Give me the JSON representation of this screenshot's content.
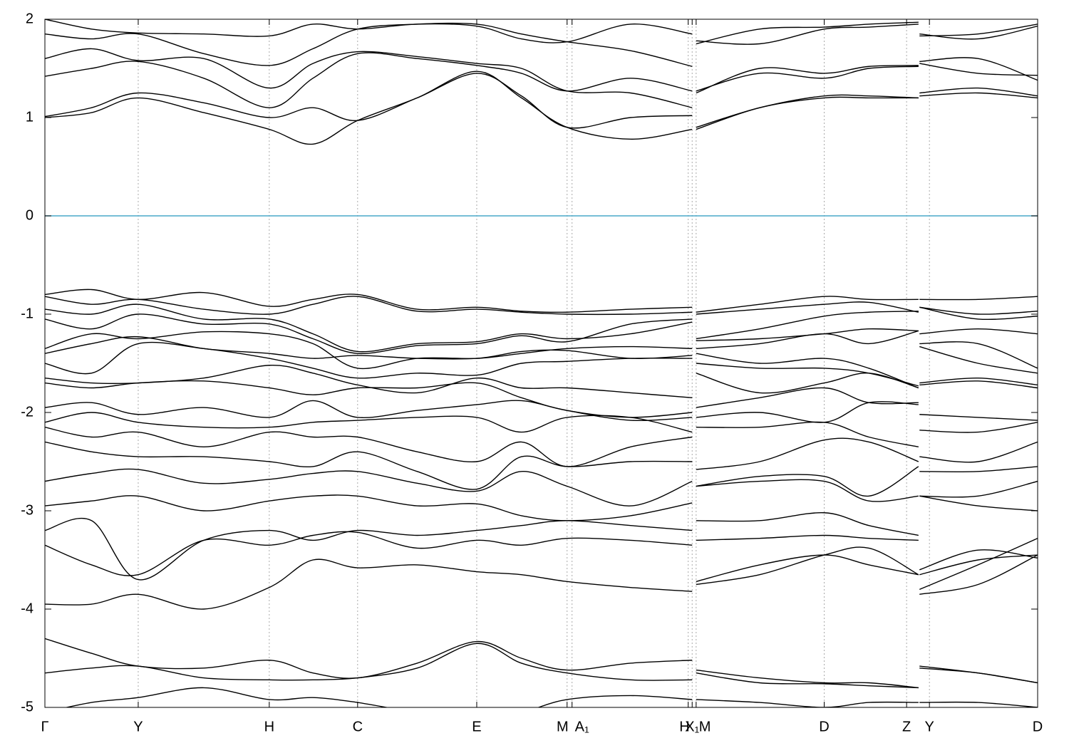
{
  "chart_data": {
    "type": "line",
    "x": [
      0,
      0.047,
      0.094,
      0.16,
      0.226,
      0.27,
      0.315,
      0.375,
      0.435,
      0.48,
      0.526,
      0.59,
      0.652,
      0.654,
      0.656,
      0.72,
      0.785,
      0.83,
      0.88,
      0.8805,
      0.881,
      0.94,
      1.0
    ],
    "xlim": [
      0,
      1.0
    ],
    "xticks": [
      {
        "value": 0,
        "label": "Γ"
      },
      {
        "value": 0.094,
        "label": "Y"
      },
      {
        "value": 0.226,
        "label": "H"
      },
      {
        "value": 0.315,
        "label": "C"
      },
      {
        "value": 0.435,
        "label": "E"
      },
      {
        "value": 0.526,
        "label": "M"
      },
      {
        "value": 0.531,
        "label": "A₁"
      },
      {
        "value": 0.648,
        "label": "H"
      },
      {
        "value": 0.652,
        "label": "X₁"
      },
      {
        "value": 0.656,
        "label": "M"
      },
      {
        "value": 0.785,
        "label": "D"
      },
      {
        "value": 0.868,
        "label": "Z"
      },
      {
        "value": 0.891,
        "label": "Y"
      },
      {
        "value": 1.0,
        "label": "D"
      }
    ],
    "ylim": [
      -5,
      2
    ],
    "yticks": [
      -5,
      -4,
      -3,
      -2,
      -1,
      0,
      1,
      2
    ],
    "grid": "x",
    "hlines": [
      {
        "value": 0,
        "color": "#4aa8c8"
      }
    ],
    "line_color": "#000000",
    "series": [
      {
        "values": [
          1.0,
          1.05,
          1.2,
          1.05,
          0.88,
          0.73,
          0.97,
          1.2,
          1.47,
          1.2,
          0.9,
          0.78,
          0.88,
          null,
          0.88,
          1.1,
          1.2,
          1.2,
          1.2,
          null,
          1.22,
          1.25,
          1.2
        ]
      },
      {
        "values": [
          1.01,
          1.1,
          1.25,
          1.15,
          1.0,
          1.1,
          0.97,
          1.2,
          1.45,
          1.22,
          0.9,
          1.0,
          1.02,
          null,
          0.9,
          1.1,
          1.22,
          1.22,
          1.2,
          null,
          1.25,
          1.3,
          1.22
        ]
      },
      {
        "values": [
          1.42,
          1.5,
          1.57,
          1.4,
          1.1,
          1.4,
          1.65,
          1.6,
          1.53,
          1.45,
          1.27,
          1.4,
          1.27,
          null,
          1.27,
          1.45,
          1.4,
          1.5,
          1.52,
          null,
          1.57,
          1.6,
          1.38
        ]
      },
      {
        "values": [
          1.6,
          1.7,
          1.58,
          1.6,
          1.3,
          1.55,
          1.67,
          1.62,
          1.55,
          1.5,
          1.27,
          1.25,
          1.1,
          null,
          1.25,
          1.5,
          1.45,
          1.52,
          1.53,
          null,
          1.55,
          1.45,
          1.43
        ]
      },
      {
        "values": [
          1.85,
          1.8,
          1.85,
          1.65,
          1.53,
          1.7,
          1.9,
          1.95,
          1.95,
          1.85,
          1.77,
          1.68,
          1.52,
          null,
          1.78,
          1.75,
          1.9,
          1.92,
          1.95,
          null,
          1.85,
          1.8,
          1.93
        ]
      },
      {
        "values": [
          2.0,
          1.9,
          1.86,
          1.85,
          1.83,
          1.95,
          1.9,
          1.95,
          1.93,
          1.8,
          1.77,
          1.95,
          1.85,
          null,
          1.75,
          1.9,
          1.92,
          1.95,
          1.97,
          null,
          1.83,
          1.85,
          1.95
        ]
      },
      {
        "values": [
          -0.8,
          -0.75,
          -0.85,
          -0.78,
          -0.92,
          -0.85,
          -0.8,
          -0.95,
          -0.93,
          -0.97,
          -0.98,
          -0.95,
          -0.93,
          null,
          -0.98,
          -0.9,
          -0.82,
          -0.85,
          -0.85,
          null,
          -0.85,
          -0.85,
          -0.82
        ]
      },
      {
        "values": [
          -0.82,
          -0.9,
          -0.85,
          -0.95,
          -1.0,
          -0.9,
          -0.82,
          -0.97,
          -0.95,
          -0.98,
          -1.0,
          -1.0,
          -0.98,
          null,
          -1.0,
          -0.95,
          -0.9,
          -0.88,
          -0.98,
          null,
          -0.93,
          -1.0,
          -0.97
        ]
      },
      {
        "values": [
          -0.95,
          -1.0,
          -0.9,
          -1.05,
          -1.05,
          -1.2,
          -1.38,
          -1.3,
          -1.28,
          -1.2,
          -1.25,
          -1.2,
          -1.08,
          null,
          -1.25,
          -1.15,
          -1.02,
          -0.98,
          -0.97,
          null,
          -0.93,
          -1.05,
          -1.02
        ]
      },
      {
        "values": [
          -1.05,
          -1.15,
          -1.0,
          -1.1,
          -1.1,
          -1.25,
          -1.4,
          -1.32,
          -1.3,
          -1.22,
          -1.28,
          -1.1,
          -1.05,
          null,
          -1.27,
          -1.25,
          -1.2,
          -1.15,
          -1.17,
          null,
          -1.2,
          -1.15,
          -1.2
        ]
      },
      {
        "values": [
          -1.35,
          -1.2,
          -1.25,
          -1.18,
          -1.2,
          -1.3,
          -1.55,
          -1.45,
          -1.45,
          -1.4,
          -1.35,
          -1.33,
          -1.35,
          null,
          -1.35,
          -1.3,
          -1.2,
          -1.3,
          -1.17,
          null,
          -1.3,
          -1.3,
          -1.55
        ]
      },
      {
        "values": [
          -1.4,
          -1.3,
          -1.23,
          -1.35,
          -1.4,
          -1.45,
          -1.42,
          -1.45,
          -1.45,
          -1.38,
          -1.37,
          -1.45,
          -1.42,
          null,
          -1.4,
          -1.5,
          -1.45,
          -1.55,
          -1.75,
          null,
          -1.33,
          -1.5,
          -1.6
        ]
      },
      {
        "values": [
          -1.5,
          -1.6,
          -1.3,
          -1.35,
          -1.45,
          -1.55,
          -1.65,
          -1.6,
          -1.62,
          -1.5,
          -1.48,
          -1.45,
          -1.45,
          null,
          -1.5,
          -1.55,
          -1.55,
          -1.6,
          -1.73,
          null,
          -1.7,
          -1.65,
          -1.72
        ]
      },
      {
        "values": [
          -1.65,
          -1.7,
          -1.7,
          -1.65,
          -1.52,
          -1.6,
          -1.72,
          -1.8,
          -1.65,
          -1.75,
          -1.75,
          -1.8,
          -1.85,
          null,
          -1.6,
          -1.8,
          -1.7,
          -1.6,
          -1.75,
          null,
          -1.72,
          -1.68,
          -1.75
        ]
      },
      {
        "values": [
          -1.7,
          -1.75,
          -1.7,
          -1.68,
          -1.75,
          -1.82,
          -1.75,
          -1.75,
          -1.7,
          -1.85,
          -1.98,
          -2.05,
          -2.0,
          null,
          -1.95,
          -1.85,
          -1.75,
          -1.9,
          -1.9,
          null,
          -2.02,
          -2.05,
          -2.08
        ]
      },
      {
        "values": [
          -1.95,
          -1.9,
          -2.02,
          -1.95,
          -2.05,
          -1.88,
          -2.05,
          -1.98,
          -1.92,
          -1.88,
          -1.98,
          -2.08,
          -2.05,
          null,
          -2.05,
          -2.0,
          -2.1,
          -1.9,
          -1.92,
          null,
          -2.18,
          -2.2,
          -2.1
        ]
      },
      {
        "values": [
          -2.1,
          -2.0,
          -2.1,
          -2.15,
          -2.15,
          -2.1,
          -2.08,
          -2.05,
          -2.05,
          -2.2,
          -2.05,
          -2.05,
          -2.2,
          null,
          -2.15,
          -2.15,
          -2.1,
          -2.25,
          -2.35,
          null,
          -2.45,
          -2.5,
          -2.3
        ]
      },
      {
        "values": [
          -2.15,
          -2.25,
          -2.2,
          -2.35,
          -2.2,
          -2.25,
          -2.25,
          -2.4,
          -2.5,
          -2.3,
          -2.55,
          -2.35,
          -2.25,
          null,
          -2.58,
          -2.5,
          -2.28,
          -2.3,
          -2.5,
          null,
          -2.6,
          -2.6,
          -2.55
        ]
      },
      {
        "values": [
          -2.3,
          -2.4,
          -2.45,
          -2.45,
          -2.5,
          -2.55,
          -2.4,
          -2.6,
          -2.78,
          -2.45,
          -2.55,
          -2.5,
          -2.5,
          null,
          -2.75,
          -2.65,
          -2.65,
          -2.85,
          -2.55,
          null,
          -2.85,
          -2.85,
          -2.7
        ]
      },
      {
        "values": [
          -2.7,
          -2.62,
          -2.58,
          -2.72,
          -2.68,
          -2.62,
          -2.6,
          -2.72,
          -2.8,
          -2.6,
          -2.75,
          -2.95,
          -2.7,
          null,
          -2.75,
          -2.7,
          -2.7,
          -2.9,
          -2.85,
          null,
          -2.85,
          -2.95,
          -3.0
        ]
      },
      {
        "values": [
          -2.95,
          -2.9,
          -2.85,
          -3.0,
          -2.9,
          -2.85,
          -2.85,
          -2.95,
          -2.93,
          -3.05,
          -3.1,
          -3.05,
          -2.92,
          null,
          -3.1,
          -3.1,
          -3.02,
          -3.15,
          -3.25,
          null,
          -3.65,
          -3.5,
          -3.45
        ]
      },
      {
        "values": [
          -3.2,
          -3.1,
          -3.7,
          -3.3,
          -3.2,
          -3.3,
          -3.2,
          -3.25,
          -3.2,
          -3.15,
          -3.1,
          -3.15,
          -3.2,
          null,
          -3.3,
          -3.28,
          -3.25,
          -3.28,
          -3.3,
          null,
          -3.8,
          -3.55,
          -3.28
        ]
      },
      {
        "values": [
          -3.35,
          -3.55,
          -3.65,
          -3.3,
          -3.35,
          -3.25,
          -3.22,
          -3.38,
          -3.3,
          -3.35,
          -3.28,
          -3.3,
          -3.35,
          null,
          -3.72,
          -3.55,
          -3.45,
          -3.55,
          -3.65,
          null,
          -3.85,
          -3.75,
          -3.45
        ]
      },
      {
        "values": [
          -3.95,
          -3.95,
          -3.85,
          -4.0,
          -3.78,
          -3.5,
          -3.58,
          -3.55,
          -3.62,
          -3.65,
          -3.72,
          -3.78,
          -3.82,
          null,
          -3.75,
          -3.65,
          -3.45,
          -3.38,
          -3.65,
          null,
          -3.6,
          -3.4,
          -3.48
        ]
      },
      {
        "values": [
          -4.3,
          -4.45,
          -4.58,
          -4.6,
          -4.52,
          -4.65,
          -4.7,
          -4.55,
          -4.33,
          -4.5,
          -4.62,
          -4.55,
          -4.52,
          null,
          -4.62,
          -4.7,
          -4.75,
          -4.75,
          -4.8,
          null,
          -4.58,
          -4.65,
          -4.75
        ]
      },
      {
        "values": [
          -4.65,
          -4.6,
          -4.58,
          -4.7,
          -4.72,
          -4.72,
          -4.7,
          -4.6,
          -4.35,
          -4.55,
          -4.65,
          -4.72,
          -4.72,
          null,
          -4.65,
          -4.75,
          -4.76,
          -4.78,
          -4.8,
          null,
          -4.6,
          -4.65,
          -4.75
        ]
      },
      {
        "values": [
          -5.05,
          -4.95,
          -4.9,
          -4.8,
          -4.92,
          -4.9,
          -4.95,
          -5.05,
          -5.1,
          -5.05,
          -4.92,
          -4.88,
          -4.92,
          null,
          -4.92,
          -4.95,
          -5.0,
          -4.95,
          -4.95,
          null,
          -4.95,
          -4.95,
          -5.0
        ]
      }
    ]
  }
}
